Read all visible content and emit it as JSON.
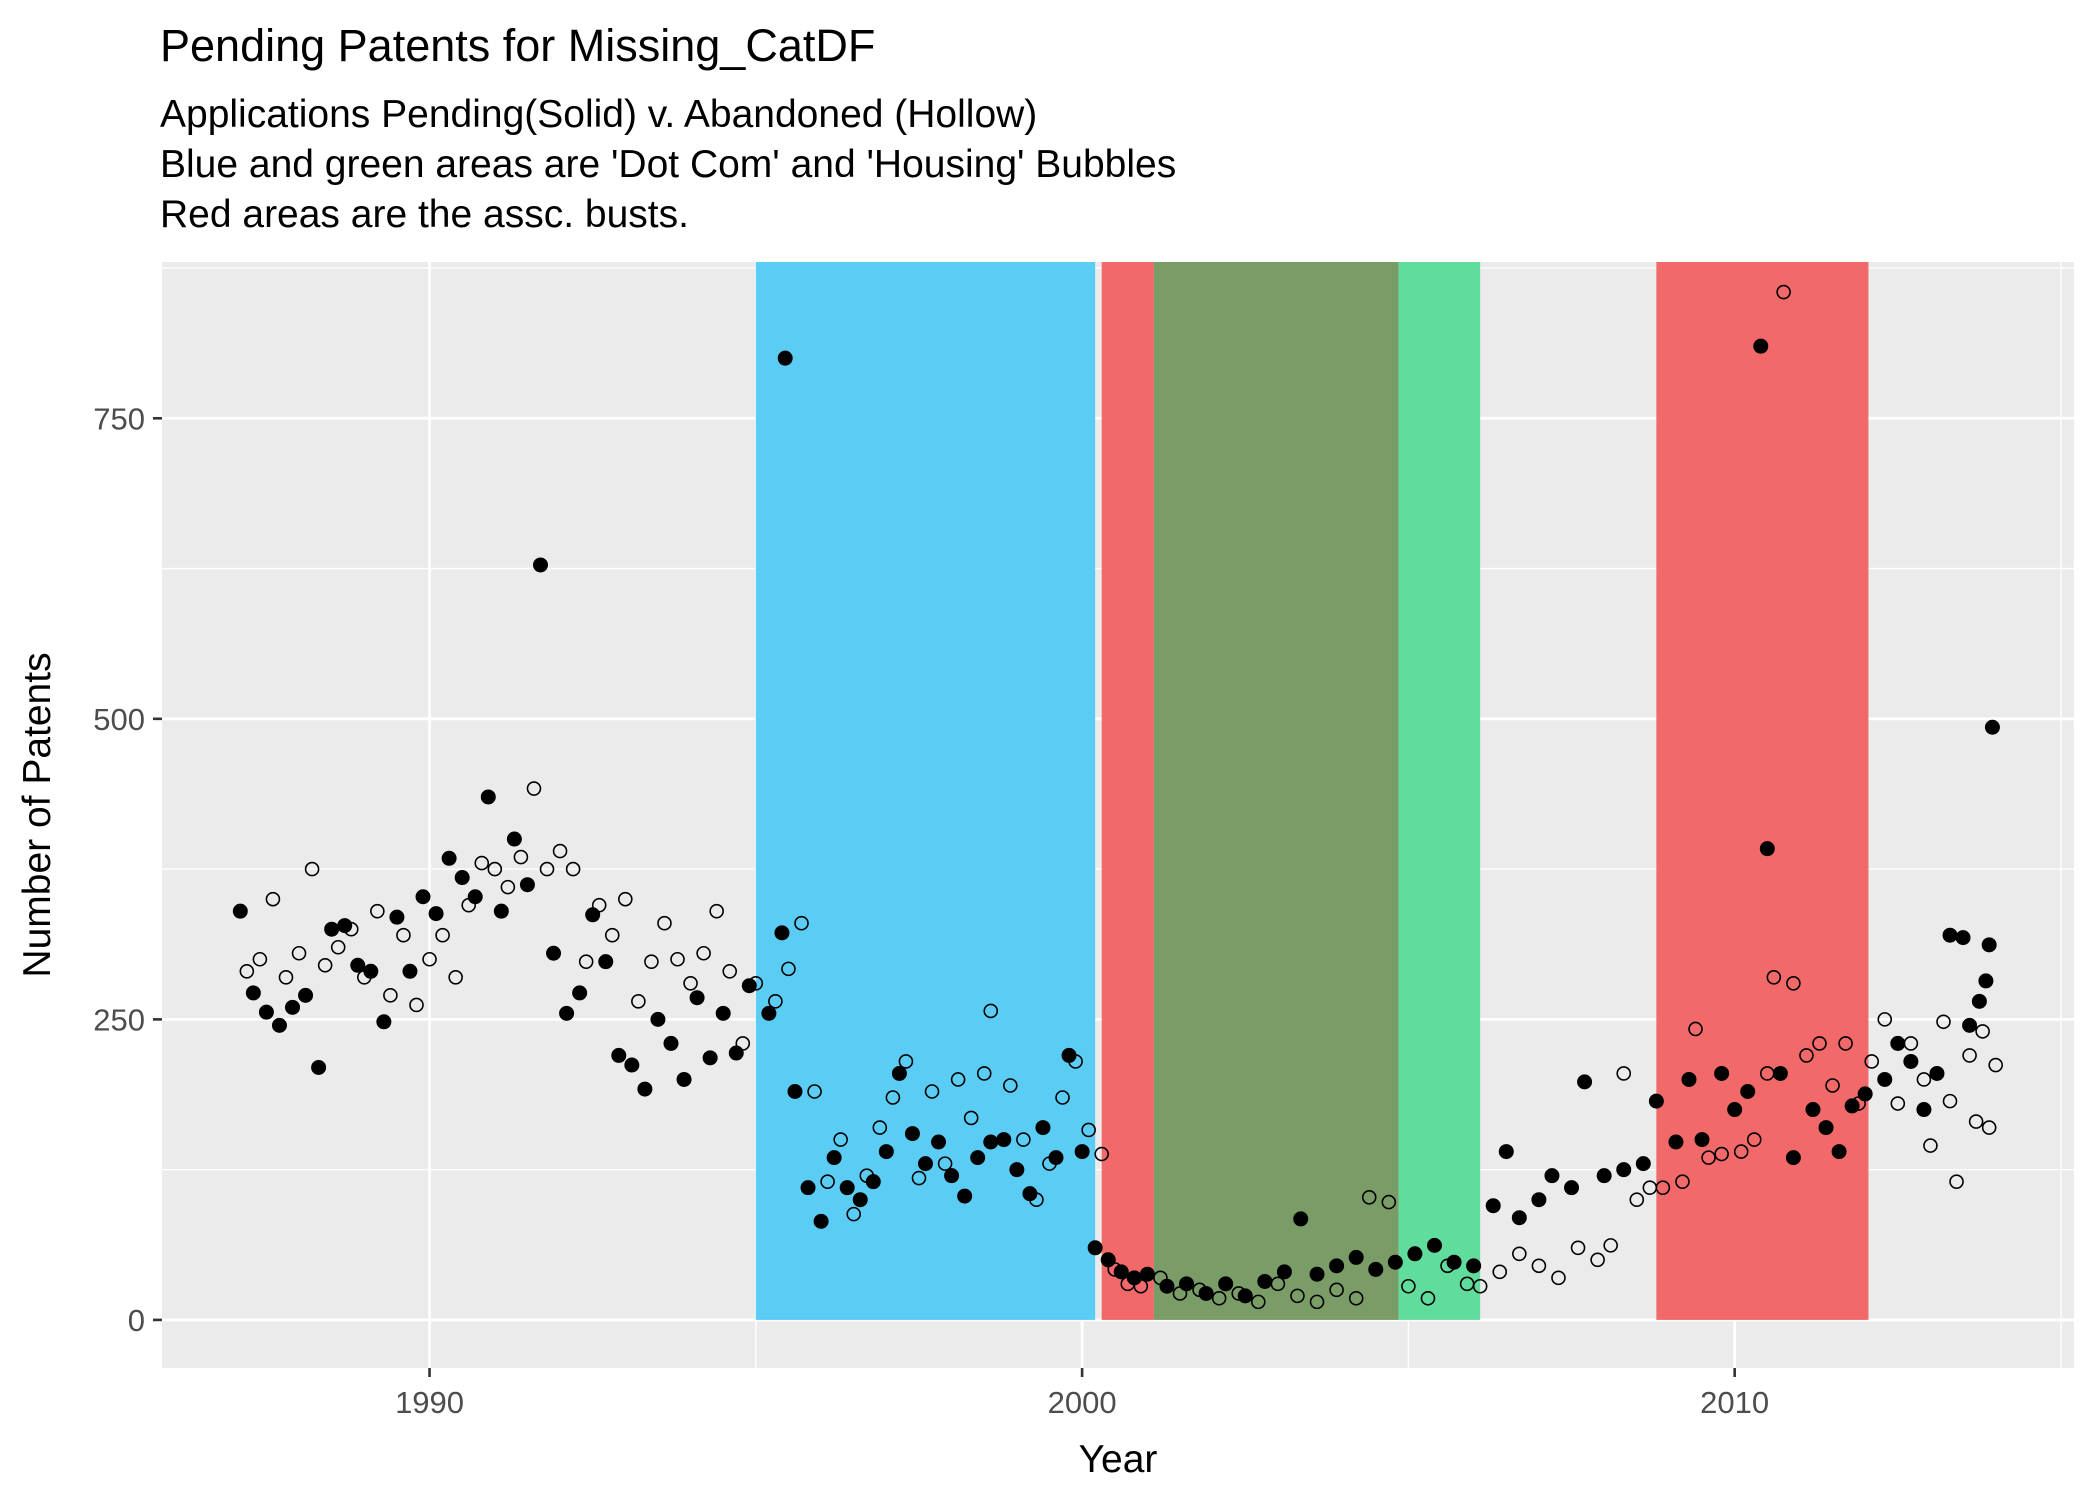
{
  "chart_data": {
    "type": "scatter",
    "title": "Pending Patents for Missing_CatDF",
    "subtitle": [
      "Applications Pending(Solid) v. Abandoned (Hollow)",
      "Blue and green areas are 'Dot Com' and 'Housing' Bubbles",
      "Red areas are the assc. busts."
    ],
    "xlabel": "Year",
    "ylabel": "Number of Patents",
    "xlim": [
      1985.9,
      2015.2
    ],
    "ylim": [
      -40,
      880
    ],
    "x_ticks": [
      1990,
      2000,
      2010
    ],
    "x_tick_labels": [
      "1990",
      "2000",
      "2010"
    ],
    "y_ticks": [
      0,
      250,
      500,
      750
    ],
    "y_tick_labels": [
      "0",
      "250",
      "500",
      "750"
    ],
    "grid": true,
    "legend": "none",
    "colors": {
      "panel": "#EBEBEB",
      "grid": "#FFFFFF",
      "dot_com_bubble": "#5BCDF5",
      "housing_bubble": "#60DC9C",
      "dot_com_bust": "#F2696A",
      "housing_bust": "#F2696A",
      "overlap": "#7A9C67"
    },
    "shaded_regions": [
      {
        "name": "dot_com_bubble",
        "x0": 1995.0,
        "x1": 2000.2,
        "color": "#5BCDF5"
      },
      {
        "name": "dot_com_bust",
        "x0": 2000.3,
        "x1": 2001.1,
        "color": "#F2696A"
      },
      {
        "name": "overlap",
        "x0": 2001.1,
        "x1": 2004.85,
        "color": "#7A9C67"
      },
      {
        "name": "housing_bubble",
        "x0": 2004.85,
        "x1": 2006.1,
        "color": "#60DC9C"
      },
      {
        "name": "housing_bust",
        "x0": 2008.8,
        "x1": 2012.05,
        "color": "#F2696A"
      }
    ],
    "series": [
      {
        "name": "Pending",
        "style": "solid",
        "points": [
          [
            1987.1,
            340
          ],
          [
            1987.3,
            272
          ],
          [
            1987.5,
            256
          ],
          [
            1987.7,
            245
          ],
          [
            1987.9,
            260
          ],
          [
            1988.1,
            270
          ],
          [
            1988.3,
            210
          ],
          [
            1988.5,
            325
          ],
          [
            1988.7,
            328
          ],
          [
            1988.9,
            295
          ],
          [
            1989.1,
            290
          ],
          [
            1989.3,
            248
          ],
          [
            1989.5,
            335
          ],
          [
            1989.7,
            290
          ],
          [
            1989.9,
            352
          ],
          [
            1990.1,
            338
          ],
          [
            1990.3,
            384
          ],
          [
            1990.5,
            368
          ],
          [
            1990.7,
            352
          ],
          [
            1990.9,
            435
          ],
          [
            1991.1,
            340
          ],
          [
            1991.3,
            400
          ],
          [
            1991.5,
            362
          ],
          [
            1991.7,
            628
          ],
          [
            1991.9,
            305
          ],
          [
            1992.1,
            255
          ],
          [
            1992.3,
            272
          ],
          [
            1992.5,
            337
          ],
          [
            1992.7,
            298
          ],
          [
            1992.9,
            220
          ],
          [
            1993.1,
            212
          ],
          [
            1993.3,
            192
          ],
          [
            1993.5,
            250
          ],
          [
            1993.7,
            230
          ],
          [
            1993.9,
            200
          ],
          [
            1994.1,
            268
          ],
          [
            1994.3,
            218
          ],
          [
            1994.5,
            255
          ],
          [
            1994.7,
            222
          ],
          [
            1994.9,
            278
          ],
          [
            1995.2,
            255
          ],
          [
            1995.4,
            322
          ],
          [
            1995.45,
            800
          ],
          [
            1995.6,
            190
          ],
          [
            1995.8,
            110
          ],
          [
            1996.0,
            82
          ],
          [
            1996.2,
            135
          ],
          [
            1996.4,
            110
          ],
          [
            1996.6,
            100
          ],
          [
            1996.8,
            115
          ],
          [
            1997.0,
            140
          ],
          [
            1997.2,
            205
          ],
          [
            1997.4,
            155
          ],
          [
            1997.6,
            130
          ],
          [
            1997.8,
            148
          ],
          [
            1998.0,
            120
          ],
          [
            1998.2,
            103
          ],
          [
            1998.4,
            135
          ],
          [
            1998.6,
            148
          ],
          [
            1998.8,
            150
          ],
          [
            1999.0,
            125
          ],
          [
            1999.2,
            105
          ],
          [
            1999.4,
            160
          ],
          [
            1999.6,
            135
          ],
          [
            1999.8,
            220
          ],
          [
            2000.0,
            140
          ],
          [
            2000.2,
            60
          ],
          [
            2000.4,
            50
          ],
          [
            2000.6,
            40
          ],
          [
            2000.8,
            35
          ],
          [
            2001.0,
            38
          ],
          [
            2001.3,
            28
          ],
          [
            2001.6,
            30
          ],
          [
            2001.9,
            22
          ],
          [
            2002.2,
            30
          ],
          [
            2002.5,
            20
          ],
          [
            2002.8,
            32
          ],
          [
            2003.1,
            40
          ],
          [
            2003.35,
            84
          ],
          [
            2003.6,
            38
          ],
          [
            2003.9,
            45
          ],
          [
            2004.2,
            52
          ],
          [
            2004.5,
            42
          ],
          [
            2004.8,
            48
          ],
          [
            2005.1,
            55
          ],
          [
            2005.4,
            62
          ],
          [
            2005.7,
            48
          ],
          [
            2006.0,
            45
          ],
          [
            2006.3,
            95
          ],
          [
            2006.5,
            140
          ],
          [
            2006.7,
            85
          ],
          [
            2007.0,
            100
          ],
          [
            2007.2,
            120
          ],
          [
            2007.5,
            110
          ],
          [
            2007.7,
            198
          ],
          [
            2008.0,
            120
          ],
          [
            2008.3,
            125
          ],
          [
            2008.6,
            130
          ],
          [
            2008.8,
            182
          ],
          [
            2009.1,
            148
          ],
          [
            2009.3,
            200
          ],
          [
            2009.5,
            150
          ],
          [
            2009.8,
            205
          ],
          [
            2010.0,
            175
          ],
          [
            2010.2,
            190
          ],
          [
            2010.4,
            810
          ],
          [
            2010.5,
            392
          ],
          [
            2010.7,
            205
          ],
          [
            2010.9,
            135
          ],
          [
            2011.2,
            175
          ],
          [
            2011.4,
            160
          ],
          [
            2011.6,
            140
          ],
          [
            2011.8,
            178
          ],
          [
            2012.0,
            188
          ],
          [
            2012.3,
            200
          ],
          [
            2012.5,
            230
          ],
          [
            2012.7,
            215
          ],
          [
            2012.9,
            175
          ],
          [
            2013.1,
            205
          ],
          [
            2013.3,
            320
          ],
          [
            2013.5,
            318
          ],
          [
            2013.6,
            245
          ],
          [
            2013.75,
            265
          ],
          [
            2013.85,
            282
          ],
          [
            2013.9,
            312
          ],
          [
            2013.95,
            493
          ]
        ]
      },
      {
        "name": "Abandoned",
        "style": "hollow",
        "points": [
          [
            1987.2,
            290
          ],
          [
            1987.4,
            300
          ],
          [
            1987.6,
            350
          ],
          [
            1987.8,
            285
          ],
          [
            1988.0,
            305
          ],
          [
            1988.2,
            375
          ],
          [
            1988.4,
            295
          ],
          [
            1988.6,
            310
          ],
          [
            1988.8,
            325
          ],
          [
            1989.0,
            285
          ],
          [
            1989.2,
            340
          ],
          [
            1989.4,
            270
          ],
          [
            1989.6,
            320
          ],
          [
            1989.8,
            262
          ],
          [
            1990.0,
            300
          ],
          [
            1990.2,
            320
          ],
          [
            1990.4,
            285
          ],
          [
            1990.6,
            345
          ],
          [
            1990.8,
            380
          ],
          [
            1991.0,
            375
          ],
          [
            1991.2,
            360
          ],
          [
            1991.4,
            385
          ],
          [
            1991.6,
            442
          ],
          [
            1991.8,
            375
          ],
          [
            1992.0,
            390
          ],
          [
            1992.2,
            375
          ],
          [
            1992.4,
            298
          ],
          [
            1992.6,
            345
          ],
          [
            1992.8,
            320
          ],
          [
            1993.0,
            350
          ],
          [
            1993.2,
            265
          ],
          [
            1993.4,
            298
          ],
          [
            1993.6,
            330
          ],
          [
            1993.8,
            300
          ],
          [
            1994.0,
            280
          ],
          [
            1994.2,
            305
          ],
          [
            1994.4,
            340
          ],
          [
            1994.6,
            290
          ],
          [
            1994.8,
            230
          ],
          [
            1995.0,
            280
          ],
          [
            1995.3,
            265
          ],
          [
            1995.5,
            292
          ],
          [
            1995.7,
            330
          ],
          [
            1995.9,
            190
          ],
          [
            1996.1,
            115
          ],
          [
            1996.3,
            150
          ],
          [
            1996.5,
            88
          ],
          [
            1996.7,
            120
          ],
          [
            1996.9,
            160
          ],
          [
            1997.1,
            185
          ],
          [
            1997.3,
            215
          ],
          [
            1997.5,
            118
          ],
          [
            1997.7,
            190
          ],
          [
            1997.9,
            130
          ],
          [
            1998.1,
            200
          ],
          [
            1998.3,
            168
          ],
          [
            1998.5,
            205
          ],
          [
            1998.6,
            257
          ],
          [
            1998.9,
            195
          ],
          [
            1999.1,
            150
          ],
          [
            1999.3,
            100
          ],
          [
            1999.5,
            130
          ],
          [
            1999.7,
            185
          ],
          [
            1999.9,
            215
          ],
          [
            2000.1,
            158
          ],
          [
            2000.3,
            138
          ],
          [
            2000.5,
            42
          ],
          [
            2000.7,
            30
          ],
          [
            2000.9,
            28
          ],
          [
            2001.2,
            35
          ],
          [
            2001.5,
            22
          ],
          [
            2001.8,
            25
          ],
          [
            2002.1,
            18
          ],
          [
            2002.4,
            22
          ],
          [
            2002.7,
            15
          ],
          [
            2003.0,
            30
          ],
          [
            2003.3,
            20
          ],
          [
            2003.6,
            15
          ],
          [
            2003.9,
            25
          ],
          [
            2004.2,
            18
          ],
          [
            2004.4,
            102
          ],
          [
            2004.7,
            98
          ],
          [
            2005.0,
            28
          ],
          [
            2005.3,
            18
          ],
          [
            2005.6,
            45
          ],
          [
            2005.9,
            30
          ],
          [
            2006.1,
            28
          ],
          [
            2006.4,
            40
          ],
          [
            2006.7,
            55
          ],
          [
            2007.0,
            45
          ],
          [
            2007.3,
            35
          ],
          [
            2007.6,
            60
          ],
          [
            2007.9,
            50
          ],
          [
            2008.1,
            62
          ],
          [
            2008.3,
            205
          ],
          [
            2008.5,
            100
          ],
          [
            2008.7,
            110
          ],
          [
            2008.9,
            110
          ],
          [
            2009.2,
            115
          ],
          [
            2009.4,
            242
          ],
          [
            2009.6,
            135
          ],
          [
            2009.8,
            138
          ],
          [
            2010.1,
            140
          ],
          [
            2010.3,
            150
          ],
          [
            2010.5,
            205
          ],
          [
            2010.6,
            285
          ],
          [
            2010.75,
            855
          ],
          [
            2010.9,
            280
          ],
          [
            2011.1,
            220
          ],
          [
            2011.3,
            230
          ],
          [
            2011.5,
            195
          ],
          [
            2011.7,
            230
          ],
          [
            2011.9,
            180
          ],
          [
            2012.1,
            215
          ],
          [
            2012.3,
            250
          ],
          [
            2012.5,
            180
          ],
          [
            2012.7,
            230
          ],
          [
            2012.9,
            200
          ],
          [
            2013.0,
            145
          ],
          [
            2013.2,
            248
          ],
          [
            2013.3,
            182
          ],
          [
            2013.4,
            115
          ],
          [
            2013.6,
            220
          ],
          [
            2013.7,
            165
          ],
          [
            2013.8,
            240
          ],
          [
            2013.9,
            160
          ],
          [
            2014.0,
            212
          ]
        ]
      }
    ]
  }
}
